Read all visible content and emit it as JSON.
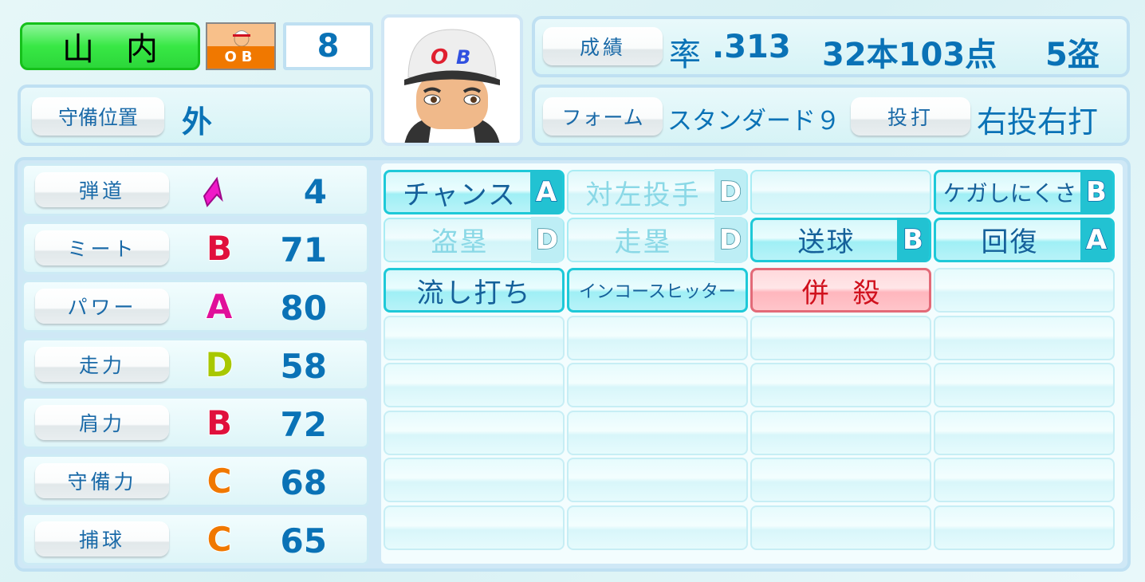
{
  "player": {
    "name": "山内",
    "team": "OB",
    "number": "8",
    "position_label": "守備位置",
    "position": "外"
  },
  "record": {
    "label": "成績",
    "avg_label": "率",
    "avg": ".313",
    "hr_rbi": "32本103点",
    "sb": "5盗"
  },
  "form": {
    "label": "フォーム",
    "value": "スタンダード９",
    "throw_bat_label": "投打",
    "throw_bat": "右投右打"
  },
  "grade_colors": {
    "A": "#e0109a",
    "B": "#e0103c",
    "C": "#f07800",
    "D": "#a8c800"
  },
  "stats": [
    {
      "label": "弾道",
      "grade": "",
      "icon": "trajectory-arrow-icon",
      "value": "4"
    },
    {
      "label": "ミート",
      "grade": "B",
      "value": "71"
    },
    {
      "label": "パワー",
      "grade": "A",
      "value": "80"
    },
    {
      "label": "走力",
      "grade": "D",
      "value": "58"
    },
    {
      "label": "肩力",
      "grade": "B",
      "value": "72"
    },
    {
      "label": "守備力",
      "grade": "C",
      "value": "68"
    },
    {
      "label": "捕球",
      "grade": "C",
      "value": "65"
    }
  ],
  "abilities": [
    {
      "label": "チャンス",
      "grade": "A",
      "style": "active"
    },
    {
      "label": "対左投手",
      "grade": "D",
      "style": "faded"
    },
    {
      "label": "",
      "grade": "",
      "style": "faded"
    },
    {
      "label": "ケガしにくさ",
      "grade": "B",
      "style": "active"
    },
    {
      "label": "盗塁",
      "grade": "D",
      "style": "faded"
    },
    {
      "label": "走塁",
      "grade": "D",
      "style": "faded"
    },
    {
      "label": "送球",
      "grade": "B",
      "style": "active"
    },
    {
      "label": "回復",
      "grade": "A",
      "style": "active"
    },
    {
      "label": "流し打ち",
      "grade": "",
      "style": "active"
    },
    {
      "label": "インコースヒッター",
      "grade": "",
      "style": "active"
    },
    {
      "label": "併殺",
      "grade": "",
      "style": "red"
    },
    {
      "label": "",
      "grade": "",
      "style": "empty"
    }
  ]
}
